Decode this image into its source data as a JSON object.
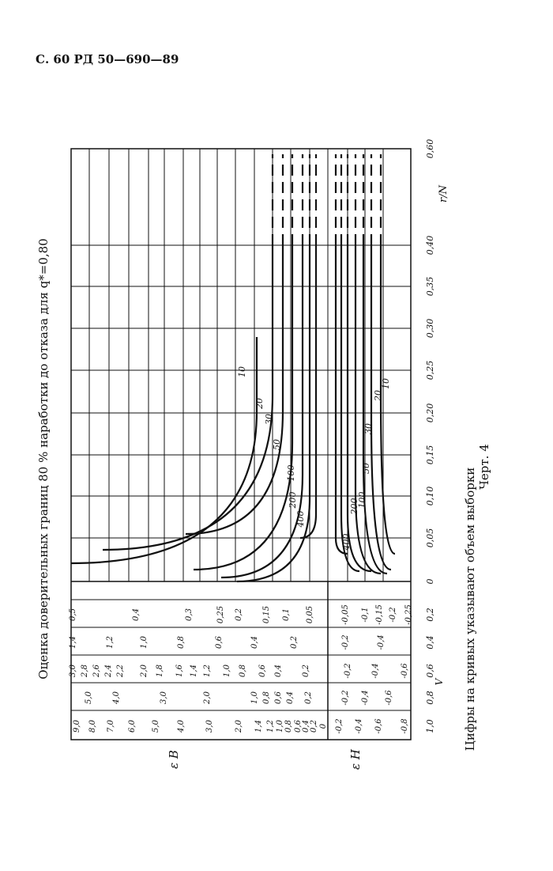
{
  "header": "С. 60 РД 50—690—89",
  "title": "Оценка доверительных границ 80 % наработки до отказа для q*=0,80",
  "note": "Цифры на кривых указывают объем выборки",
  "figure": "Черт. 4",
  "chart": {
    "x_label": "r/N",
    "x_ticks": [
      "0",
      "0,05",
      "0,10",
      "0,15",
      "0,20",
      "0,25",
      "0,30",
      "0,35",
      "0,40",
      "0,60"
    ],
    "eps_upper_label": "ε В",
    "eps_lower_label": "ε Н",
    "v_label": "V",
    "v_values": [
      "1,0",
      "0,8",
      "0,6",
      "0,4",
      "0,2"
    ],
    "scale_columns": [
      [
        "9,0",
        "8,0",
        "7,0",
        "6,0",
        "5,0",
        "4,0",
        "3,0",
        "2,0",
        "1,4",
        "1,2",
        "1,0",
        "0,8",
        "0,6",
        "0,4",
        "0,2",
        "0",
        "-0,2",
        "-0,4",
        "-0,6",
        "-0,8"
      ],
      [
        "5,0",
        "4,0",
        "3,0",
        "2,0",
        "1,0",
        "0,8",
        "0,6",
        "0,4",
        "0,2",
        "-0,2",
        "-0,4",
        "-0,6"
      ],
      [
        "3,0",
        "2,8",
        "2,6",
        "2,4",
        "2,2",
        "2,0",
        "1,8",
        "1,6",
        "1,4",
        "1,2",
        "1,0",
        "0,8",
        "0,6",
        "0,4",
        "0,2",
        "-0,2",
        "-0,4",
        "-0,6"
      ],
      [
        "1,4",
        "1,2",
        "1,0",
        "0,8",
        "0,6",
        "0,4",
        "0,2",
        "-0,2",
        "-0,4"
      ],
      [
        "0,5",
        "0,4",
        "0,3",
        "0,25",
        "0,2",
        "0,15",
        "0,1",
        "0,05",
        "-0,05",
        "-0,1",
        "-0,15",
        "-0,2",
        "-0,25"
      ]
    ],
    "upper_curve_labels": [
      "10",
      "20",
      "30",
      "50",
      "100",
      "200",
      "400"
    ],
    "lower_curve_labels": [
      "400",
      "200",
      "100",
      "50",
      "30",
      "20",
      "10"
    ]
  }
}
